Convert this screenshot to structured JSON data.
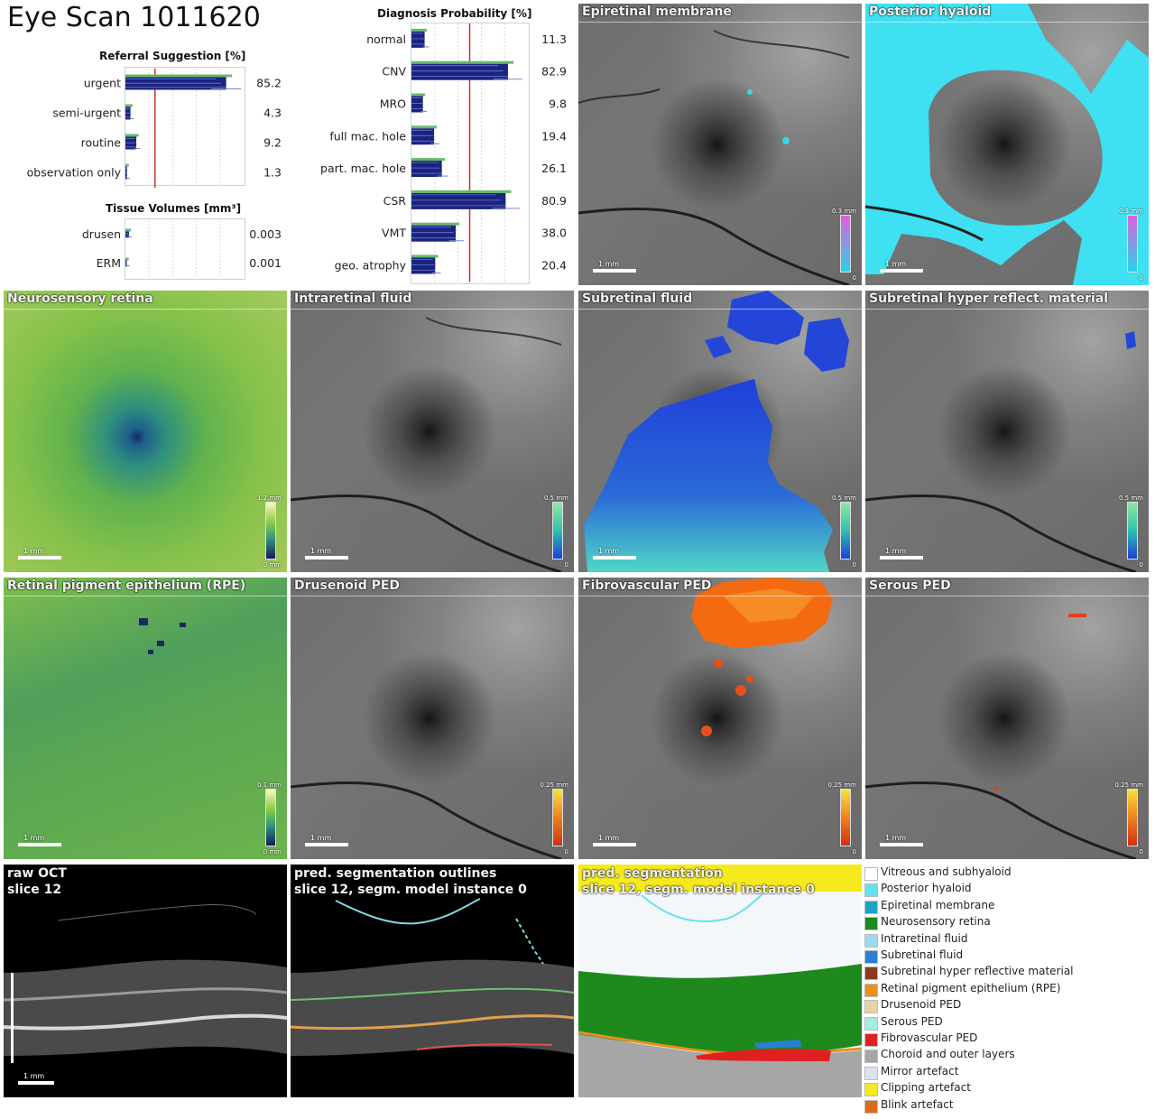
{
  "title": "Eye Scan 1011620",
  "charts": {
    "referral_title": "Referral Suggestion [%]",
    "tissue_title": "Tissue Volumes [mm³]",
    "diagnosis_title": "Diagnosis Probability [%]"
  },
  "chart_data": [
    {
      "type": "bar",
      "title": "Referral Suggestion [%]",
      "categories": [
        "urgent",
        "semi-urgent",
        "routine",
        "observation only"
      ],
      "values": [
        85.2,
        4.3,
        9.2,
        1.3
      ],
      "value_labels": [
        "85.2",
        "4.3",
        "9.2",
        "1.3"
      ],
      "xlim": [
        0,
        100
      ],
      "threshold": 25,
      "colors": {
        "bar": "#1a237e",
        "spread": "#66bb6a",
        "threshold": "#c0392b"
      }
    },
    {
      "type": "bar",
      "title": "Tissue Volumes [mm³]",
      "categories": [
        "drusen",
        "ERM"
      ],
      "values": [
        0.003,
        0.001
      ],
      "value_labels": [
        "0.003",
        "0.001"
      ],
      "xlim": [
        0,
        0.1
      ]
    },
    {
      "type": "bar",
      "title": "Diagnosis Probability [%]",
      "categories": [
        "normal",
        "CNV",
        "MRO",
        "full mac. hole",
        "part. mac. hole",
        "CSR",
        "VMT",
        "geo. atrophy"
      ],
      "values": [
        11.3,
        82.9,
        9.8,
        19.4,
        26.1,
        80.9,
        38.0,
        20.4
      ],
      "value_labels": [
        "11.3",
        "82.9",
        "9.8",
        "19.4",
        "26.1",
        "80.9",
        "38.0",
        "20.4"
      ],
      "xlim": [
        0,
        100
      ],
      "threshold": 50
    }
  ],
  "panels": [
    {
      "id": "epiretinal",
      "title": "Epiretinal membrane",
      "cb_top": "0.3 mm",
      "cb_bot": "0"
    },
    {
      "id": "posterior",
      "title": "Posterior hyaloid",
      "cb_top": "0.3 mm",
      "cb_bot": "0"
    },
    {
      "id": "neurosensory",
      "title": "Neurosensory retina",
      "cb_top": "1.2 mm",
      "cb_bot": "0 mm"
    },
    {
      "id": "irf",
      "title": "Intraretinal fluid",
      "cb_top": "0.5 mm",
      "cb_bot": "0"
    },
    {
      "id": "srf",
      "title": "Subretinal fluid",
      "cb_top": "0.5 mm",
      "cb_bot": "0"
    },
    {
      "id": "shrm",
      "title": "Subretinal hyper reflect. material",
      "cb_top": "0.5 mm",
      "cb_bot": "0"
    },
    {
      "id": "rpe",
      "title": "Retinal pigment epithelium (RPE)",
      "cb_top": "0.1 mm",
      "cb_bot": "0 mm"
    },
    {
      "id": "drusenoid",
      "title": "Drusenoid PED",
      "cb_top": "0.25 mm",
      "cb_bot": "0"
    },
    {
      "id": "fibro",
      "title": "Fibrovascular PED",
      "cb_top": "0.25 mm",
      "cb_bot": "0"
    },
    {
      "id": "serous",
      "title": "Serous PED",
      "cb_top": "0.25 mm",
      "cb_bot": "0"
    }
  ],
  "scale_label": "1 mm",
  "oct": {
    "raw_title_1": "raw OCT",
    "raw_title_2": "slice 12",
    "seg_title_1": "pred. segmentation outlines",
    "seg_title_2": "slice 12, segm. model instance 0",
    "map_title_1": "pred. segmentation",
    "map_title_2": "slice 12, segm. model instance 0"
  },
  "legend": [
    {
      "label": "Vitreous and subhyaloid",
      "color": "#ffffff"
    },
    {
      "label": "Posterior hyaloid",
      "color": "#66e0f0"
    },
    {
      "label": "Epiretinal membrane",
      "color": "#1ba3c6"
    },
    {
      "label": "Neurosensory retina",
      "color": "#1e8a1e"
    },
    {
      "label": "Intraretinal fluid",
      "color": "#9fd8ef"
    },
    {
      "label": "Subretinal fluid",
      "color": "#2a7fd4"
    },
    {
      "label": "Subretinal hyper reflective material",
      "color": "#8b3a1a"
    },
    {
      "label": "Retinal pigment epithelium (RPE)",
      "color": "#e8901c"
    },
    {
      "label": "Drusenoid PED",
      "color": "#e8d2a8"
    },
    {
      "label": "Serous PED",
      "color": "#a8eae0"
    },
    {
      "label": "Fibrovascular PED",
      "color": "#e02020"
    },
    {
      "label": "Choroid and outer layers",
      "color": "#a6a6a6"
    },
    {
      "label": "Mirror artefact",
      "color": "#dde4f0"
    },
    {
      "label": "Clipping artefact",
      "color": "#f6ea1c"
    },
    {
      "label": "Blink artefact",
      "color": "#d86a1a"
    }
  ]
}
